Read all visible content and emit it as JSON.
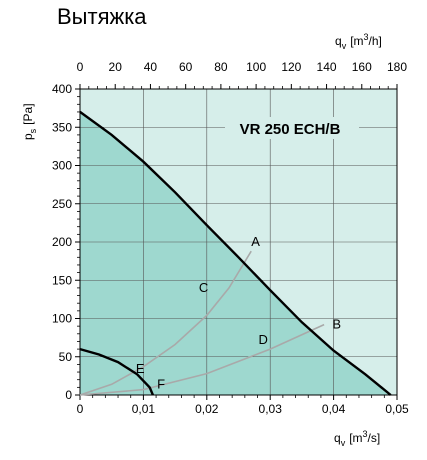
{
  "page_title": "Вытяжка",
  "chart_data": {
    "type": "line",
    "title": "VR 250 ECH/B",
    "y_axis": {
      "label_main": "p",
      "label_sub": "s",
      "label_unit": "[Pa]",
      "ylim": [
        0,
        400
      ],
      "ticks": [
        0,
        50,
        100,
        150,
        200,
        250,
        300,
        350,
        400
      ],
      "tick_labels": [
        "0",
        "50",
        "100",
        "150",
        "200",
        "250",
        "300",
        "350",
        "400"
      ]
    },
    "x_bottom": {
      "label_main": "q",
      "label_sub": "v",
      "label_unit": "[m3/s]",
      "xlim": [
        0,
        0.05
      ],
      "ticks": [
        0,
        0.01,
        0.02,
        0.03,
        0.04,
        0.05
      ],
      "tick_labels": [
        "0",
        "0,01",
        "0,02",
        "0,03",
        "0,04",
        "0,05"
      ]
    },
    "x_top": {
      "label_main": "q",
      "label_sub": "v",
      "label_unit": "[m3/h]",
      "xlim": [
        0,
        180
      ],
      "ticks": [
        0,
        20,
        40,
        60,
        80,
        100,
        120,
        140,
        160,
        180
      ],
      "tick_labels": [
        "0",
        "20",
        "40",
        "60",
        "80",
        "100",
        "120",
        "140",
        "160",
        "180"
      ]
    },
    "grid": true,
    "colors": {
      "background": "#d6eeea",
      "fill": "#9ed8cf",
      "fan_curve": "#000000",
      "system_curve": "#a9a9a9"
    },
    "fan_curves": [
      {
        "points": [
          [
            0,
            370
          ],
          [
            0.005,
            340
          ],
          [
            0.01,
            305
          ],
          [
            0.015,
            265
          ],
          [
            0.02,
            222
          ],
          [
            0.025,
            180
          ],
          [
            0.03,
            137
          ],
          [
            0.035,
            95
          ],
          [
            0.04,
            58
          ],
          [
            0.045,
            27
          ],
          [
            0.049,
            0
          ]
        ]
      },
      {
        "points": [
          [
            0,
            60
          ],
          [
            0.003,
            53
          ],
          [
            0.006,
            43
          ],
          [
            0.009,
            27
          ],
          [
            0.011,
            10
          ],
          [
            0.0115,
            0
          ]
        ]
      }
    ],
    "system_curves": [
      {
        "points": [
          [
            0,
            0
          ],
          [
            0.005,
            14
          ],
          [
            0.01,
            37
          ],
          [
            0.015,
            66
          ],
          [
            0.02,
            104
          ],
          [
            0.0235,
            140
          ],
          [
            0.027,
            188
          ]
        ]
      },
      {
        "points": [
          [
            0,
            0
          ],
          [
            0.01,
            7
          ],
          [
            0.02,
            28
          ],
          [
            0.03,
            60
          ],
          [
            0.0385,
            92
          ]
        ]
      }
    ],
    "annotations": [
      {
        "text": "A",
        "x": 0.0277,
        "y": 200
      },
      {
        "text": "B",
        "x": 0.0405,
        "y": 92
      },
      {
        "text": "C",
        "x": 0.0195,
        "y": 140
      },
      {
        "text": "D",
        "x": 0.0289,
        "y": 72
      },
      {
        "text": "E",
        "x": 0.0095,
        "y": 34
      },
      {
        "text": "F",
        "x": 0.0128,
        "y": 14
      }
    ]
  }
}
